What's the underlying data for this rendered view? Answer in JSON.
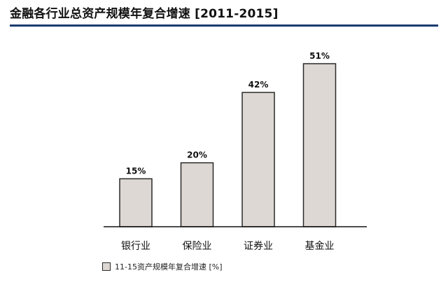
{
  "chart_data": {
    "type": "bar",
    "title": "金融各行业总资产规模年复合增速 [2011-2015]",
    "categories": [
      "银行业",
      "保险业",
      "证券业",
      "基金业"
    ],
    "values": [
      15,
      20,
      42,
      51
    ],
    "value_labels": [
      "15%",
      "20%",
      "42%",
      "51%"
    ],
    "series": [
      {
        "name": "11-15资产规模年复合增速 [%]",
        "values": [
          15,
          20,
          42,
          51
        ]
      }
    ],
    "ylim": [
      0,
      51
    ],
    "grid": false,
    "legend_position": "bottom-left",
    "colors": {
      "bar_fill": "#ddd8d3",
      "bar_stroke": "#2a2a2a",
      "title_rule": "#1b3a70"
    }
  }
}
